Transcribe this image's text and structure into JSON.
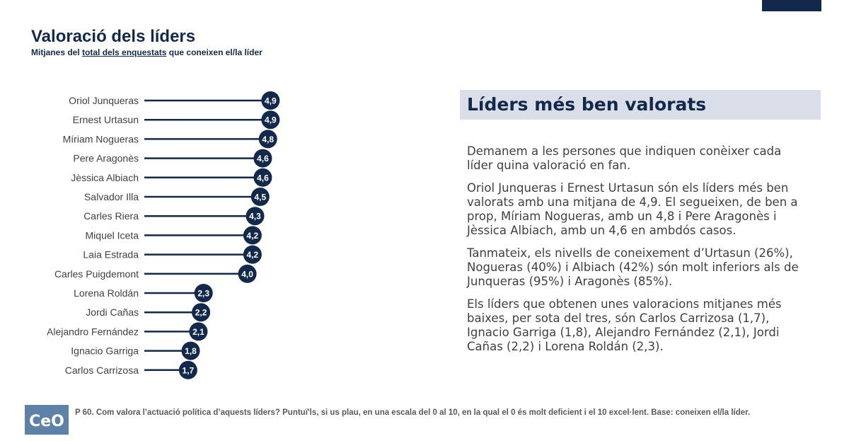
{
  "header": {
    "title": "Valoració dels líders",
    "subtitle_before": "Mitjanes del ",
    "subtitle_underlined": "total dels enquestats",
    "subtitle_after": " que coneixen el/la líder"
  },
  "chart_data": {
    "type": "bar",
    "orientation": "horizontal",
    "style": "lollipop",
    "title": "Valoració dels líders",
    "subtitle": "Mitjanes del total dels enquestats que coneixen el/la líder",
    "categories": [
      "Oriol Junqueras",
      "Ernest Urtasun",
      "Míriam Nogueras",
      "Pere Aragonès",
      "Jèssica Albiach",
      "Salvador Illa",
      "Carles Riera",
      "Miquel Iceta",
      "Laia Estrada",
      "Carles Puigdemont",
      "Lorena Roldán",
      "Jordi Cañas",
      "Alejandro Fernández",
      "Ignacio Garriga",
      "Carlos Carrizosa"
    ],
    "values": [
      4.9,
      4.9,
      4.8,
      4.6,
      4.6,
      4.5,
      4.3,
      4.2,
      4.2,
      4.0,
      2.3,
      2.2,
      2.1,
      1.8,
      1.7
    ],
    "value_labels": [
      "4,9",
      "4,9",
      "4,8",
      "4,6",
      "4,6",
      "4,5",
      "4,3",
      "4,2",
      "4,2",
      "4,0",
      "2,3",
      "2,2",
      "2,1",
      "1,8",
      "1,7"
    ],
    "xlim": [
      0,
      10
    ],
    "grid": false,
    "colors": {
      "stick": "#13294b",
      "marker": "#13294b",
      "marker_text": "#ffffff"
    }
  },
  "panel": {
    "heading": "Líders més ben valorats",
    "paragraphs": [
      "Demanem a les persones que indiquen conèixer cada líder quina valoració en fan.",
      "Oriol Junqueras i Ernest Urtasun són els líders més ben valorats amb una mitjana de 4,9. El segueixen, de ben a prop, Míriam Nogueras, amb un 4,8 i Pere Aragonès i Jèssica Albiach, amb un 4,6 en ambdós casos.",
      "Tanmateix, els nivells de coneixement d’Urtasun (26%), Nogueras (40%) i Albiach (42%) són molt inferiors als de Junqueras (95%) i Aragonès (85%).",
      "Els líders que obtenen unes valoracions mitjanes més baixes, per sota del tres, són Carlos Carrizosa (1,7), Ignacio Garriga (1,8), Alejandro Fernández (2,1), Jordi Cañas (2,2) i Lorena Roldán (2,3)."
    ]
  },
  "footer": {
    "logo_text": "CeO",
    "note": "P 60. Com valora l’actuació política d’aquests líders? Puntuï'ls, si us plau, en una escala del 0 al 10, en la qual el 0 és molt deficient i el 10 excel·lent. Base: coneixen el/la líder."
  },
  "colors": {
    "brand_navy": "#13294b",
    "panel_bg": "#d9dee8",
    "logo_bg": "#5e81a8"
  }
}
